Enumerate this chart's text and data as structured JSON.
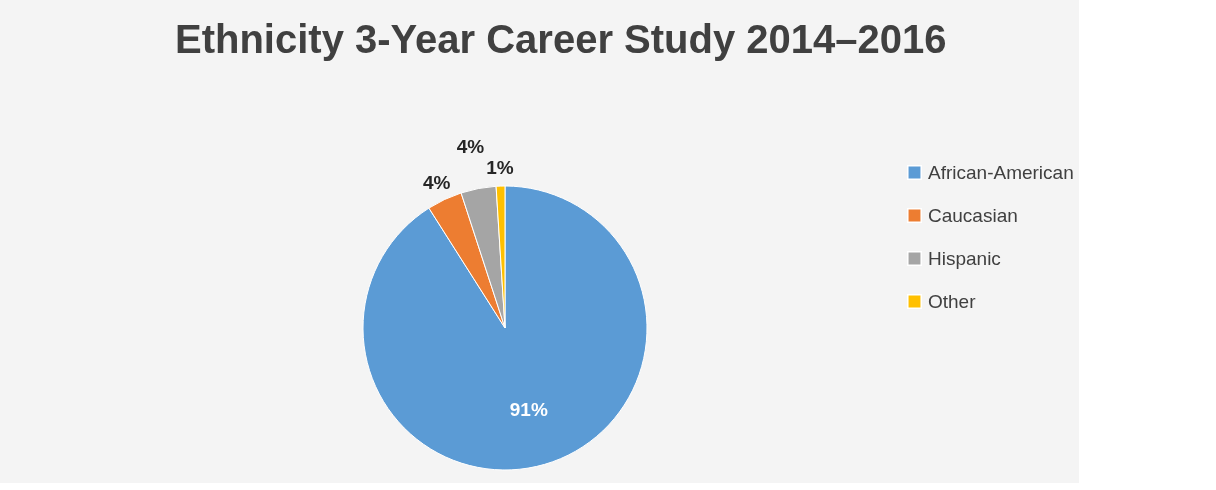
{
  "chart_data": {
    "type": "pie",
    "title": "Ethnicity 3-Year Career Study 2014–2016",
    "categories": [
      "African-American",
      "Caucasian",
      "Hispanic",
      "Other"
    ],
    "values": [
      91,
      4,
      4,
      1
    ],
    "colors": [
      "#5b9bd5",
      "#ed7d31",
      "#a5a5a5",
      "#ffc000"
    ],
    "value_labels": [
      "91%",
      "4%",
      "4%",
      "1%"
    ],
    "legend": "right"
  }
}
